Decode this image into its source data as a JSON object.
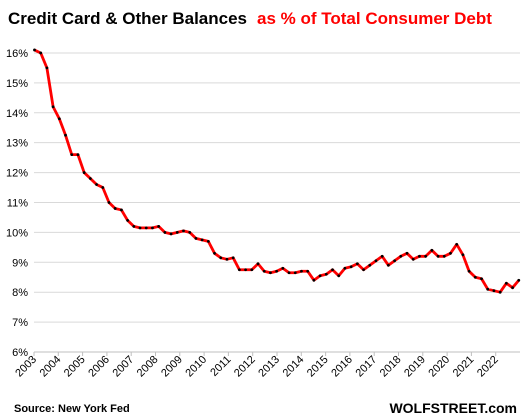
{
  "chart_data": {
    "type": "line",
    "title_part1": "Credit Card & Other Balances",
    "title_part2": "as % of Total Consumer Debt",
    "ylim": [
      6,
      16.5
    ],
    "yticks": [
      "6%",
      "7%",
      "8%",
      "9%",
      "10%",
      "11%",
      "12%",
      "13%",
      "14%",
      "15%",
      "16%"
    ],
    "xticks": [
      "2003",
      "2004",
      "2005",
      "2006",
      "2007",
      "2008",
      "2009",
      "2010",
      "2011",
      "2012",
      "2013",
      "2014",
      "2015",
      "2016",
      "2017",
      "2018",
      "2019",
      "2020",
      "2021",
      "2022"
    ],
    "xlim": [
      2003,
      2023
    ],
    "grid": true,
    "series": [
      {
        "values": [
          16.1,
          16.0,
          15.5,
          14.2,
          13.8,
          13.25,
          12.6,
          12.6,
          12.0,
          11.8,
          11.6,
          11.5,
          11.0,
          10.8,
          10.75,
          10.4,
          10.2,
          10.15,
          10.15,
          10.15,
          10.2,
          10.0,
          9.95,
          10.0,
          10.05,
          10.0,
          9.8,
          9.75,
          9.7,
          9.3,
          9.15,
          9.1,
          9.15,
          8.75,
          8.75,
          8.75,
          8.95,
          8.7,
          8.65,
          8.7,
          8.8,
          8.65,
          8.65,
          8.7,
          8.7,
          8.4,
          8.55,
          8.6,
          8.75,
          8.55,
          8.8,
          8.85,
          8.95,
          8.75,
          8.9,
          9.05,
          9.2,
          8.9,
          9.05,
          9.2,
          9.3,
          9.1,
          9.2,
          9.2,
          9.4,
          9.2,
          9.2,
          9.3,
          9.6,
          9.25,
          8.7,
          8.5,
          8.45,
          8.1,
          8.05,
          8.0,
          8.3,
          8.15,
          8.4
        ]
      }
    ],
    "line_color": "#ff0000",
    "point_color": "#000000"
  },
  "footer": {
    "source": "Source: New York Fed",
    "brand": "WOLFSTREET.com"
  }
}
